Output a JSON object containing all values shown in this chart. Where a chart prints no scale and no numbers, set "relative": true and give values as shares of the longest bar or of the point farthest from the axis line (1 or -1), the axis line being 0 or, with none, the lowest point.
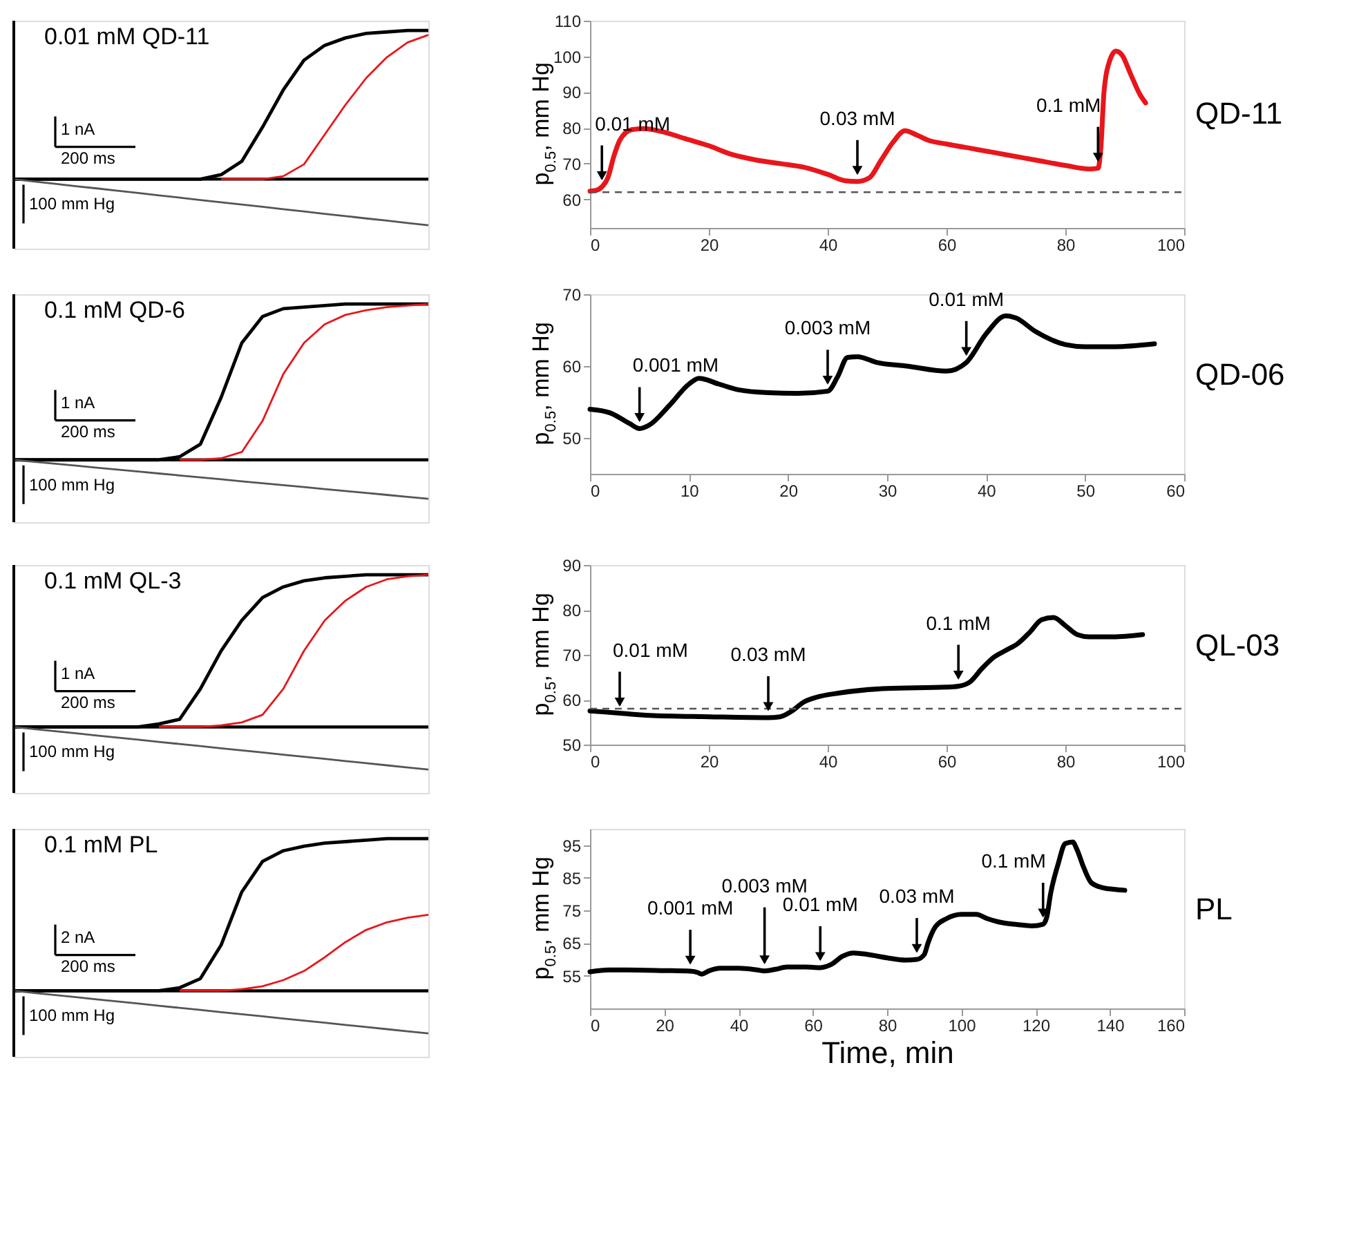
{
  "chart_data": [
    {
      "type": "line",
      "title": "0.01 mM  QD-11",
      "relative": true,
      "annotations": [
        "1 nA",
        "200 ms",
        "100 mm Hg"
      ],
      "categories": [
        null,
        null,
        null,
        null,
        null,
        null,
        null,
        null,
        null,
        null,
        null,
        null,
        null,
        null,
        null,
        null,
        null,
        null,
        null,
        null,
        null
      ],
      "series": [
        {
          "color": "#000000",
          "values": [
            0,
            0,
            0,
            0,
            0,
            0,
            0,
            0,
            0,
            0,
            0.03,
            0.12,
            0.35,
            0.6,
            0.8,
            0.9,
            0.95,
            0.98,
            0.99,
            1,
            1
          ]
        },
        {
          "color": "#e8161b",
          "values": [
            null,
            null,
            null,
            null,
            null,
            null,
            null,
            null,
            null,
            null,
            0,
            0,
            0,
            0.02,
            0.1,
            0.3,
            0.5,
            0.68,
            0.82,
            0.92,
            0.97
          ]
        },
        {
          "color": "#555555",
          "values": [
            0,
            -0.016,
            -0.031,
            -0.047,
            -0.062,
            -0.078,
            -0.093,
            -0.109,
            -0.124,
            -0.14,
            -0.155,
            -0.171,
            -0.186,
            -0.202,
            -0.217,
            -0.233,
            -0.248,
            -0.264,
            -0.279,
            -0.295,
            -0.31
          ]
        }
      ]
    },
    {
      "type": "line",
      "ylabel": "p$_{0.5}$, mm Hg",
      "xlim": [
        0,
        100
      ],
      "xticks": [
        0,
        20,
        40,
        60,
        80,
        100
      ],
      "ylim": [
        52,
        110
      ],
      "yticks": [
        60,
        70,
        80,
        90,
        100,
        110
      ],
      "x": [
        0,
        1,
        2,
        3,
        4,
        5,
        7,
        9,
        12,
        16,
        20,
        24,
        28,
        32,
        36,
        40,
        43,
        45,
        47,
        49,
        51,
        53,
        55,
        57,
        60,
        65,
        70,
        75,
        80,
        84,
        85.5,
        86,
        86.5,
        87.5,
        88.5,
        89.5,
        91,
        92.5,
        93.5
      ],
      "series": [
        {
          "color": "#e8161b",
          "values": [
            62.3,
            62.5,
            63.5,
            66,
            72,
            76.5,
            79.5,
            79.8,
            79,
            77,
            75,
            72.5,
            71,
            70,
            69,
            67,
            65.2,
            65,
            66,
            71,
            76,
            79.2,
            78,
            76.5,
            75.5,
            74,
            72.5,
            71,
            69.5,
            68.5,
            68.7,
            75,
            90,
            99,
            101.5,
            100.5,
            95,
            89.5,
            87
          ]
        }
      ],
      "ref_lines": [
        {
          "axis": "y",
          "value": 62,
          "color": "#555555",
          "line_style": "dashed"
        }
      ],
      "annotations": [
        "QD-11",
        {
          "text": "0.01 mM",
          "x": 2,
          "y": 63.5
        },
        {
          "text": "0.03 mM",
          "x": 45,
          "y": 65
        },
        {
          "text": "0.1 mM",
          "x": 85.5,
          "y": 68.7
        }
      ]
    },
    {
      "type": "line",
      "title": "0.1 mM QD-6",
      "relative": true,
      "annotations": [
        "1 nA",
        "200 ms",
        "100 mm Hg"
      ],
      "categories": [
        null,
        null,
        null,
        null,
        null,
        null,
        null,
        null,
        null,
        null,
        null,
        null,
        null,
        null,
        null,
        null,
        null,
        null,
        null,
        null,
        null
      ],
      "series": [
        {
          "color": "#000000",
          "values": [
            0,
            0,
            0,
            0,
            0,
            0,
            0,
            0,
            0.02,
            0.1,
            0.4,
            0.75,
            0.92,
            0.97,
            0.98,
            0.99,
            1,
            1,
            1,
            1,
            1
          ]
        },
        {
          "color": "#e8161b",
          "values": [
            null,
            null,
            null,
            null,
            null,
            null,
            null,
            null,
            0,
            0,
            0.01,
            0.05,
            0.25,
            0.55,
            0.75,
            0.87,
            0.93,
            0.96,
            0.98,
            0.99,
            1
          ]
        },
        {
          "color": "#555555",
          "values": [
            0,
            -0.0125,
            -0.025,
            -0.0375,
            -0.05,
            -0.0625,
            -0.075,
            -0.0875,
            -0.1,
            -0.1125,
            -0.125,
            -0.1375,
            -0.15,
            -0.1625,
            -0.175,
            -0.1875,
            -0.2,
            -0.2125,
            -0.225,
            -0.2375,
            -0.25
          ]
        }
      ]
    },
    {
      "type": "line",
      "ylabel": "p$_{0.5}$, mm Hg",
      "xlim": [
        0,
        60
      ],
      "xticks": [
        0,
        10,
        20,
        30,
        40,
        50,
        60
      ],
      "ylim": [
        45,
        70
      ],
      "yticks": [
        50,
        60,
        70
      ],
      "x": [
        0,
        2,
        4,
        5,
        6,
        8,
        10,
        11,
        13,
        15,
        18,
        21,
        24,
        25,
        26,
        27,
        29,
        32,
        36,
        38,
        40,
        42,
        43,
        45,
        48,
        50,
        53,
        57
      ],
      "series": [
        {
          "color": "#000000",
          "values": [
            54,
            53.5,
            52,
            51.3,
            51.8,
            54.5,
            57.5,
            58.3,
            57.5,
            56.7,
            56.3,
            56.2,
            56.5,
            58.5,
            61.2,
            61.3,
            60.5,
            60,
            59.3,
            60.5,
            64.5,
            67,
            66.7,
            64.8,
            63,
            62.7,
            62.7,
            63.1
          ]
        }
      ],
      "annotations": [
        "QD-06",
        {
          "text": "0.001 mM",
          "x": 5,
          "y": 51.3
        },
        {
          "text": "0.003 mM",
          "x": 24,
          "y": 56.5
        },
        {
          "text": "0.01 mM",
          "x": 38,
          "y": 60.5
        }
      ]
    },
    {
      "type": "line",
      "title": "0.1 mM QL-3",
      "relative": true,
      "annotations": [
        "1 nA",
        "200 ms",
        "100 mm Hg"
      ],
      "categories": [
        null,
        null,
        null,
        null,
        null,
        null,
        null,
        null,
        null,
        null,
        null,
        null,
        null,
        null,
        null,
        null,
        null,
        null,
        null,
        null,
        null
      ],
      "series": [
        {
          "color": "#000000",
          "values": [
            0,
            0,
            0,
            0,
            0,
            0,
            0,
            0.02,
            0.05,
            0.25,
            0.5,
            0.7,
            0.85,
            0.92,
            0.96,
            0.98,
            0.99,
            1,
            1,
            1,
            1
          ]
        },
        {
          "color": "#e8161b",
          "values": [
            null,
            null,
            null,
            null,
            null,
            null,
            null,
            0,
            0,
            0,
            0.01,
            0.03,
            0.08,
            0.25,
            0.5,
            0.7,
            0.83,
            0.92,
            0.97,
            0.99,
            1
          ]
        },
        {
          "color": "#555555",
          "values": [
            0,
            -0.014,
            -0.028,
            -0.042,
            -0.056,
            -0.07,
            -0.084,
            -0.098,
            -0.112,
            -0.126,
            -0.14,
            -0.154,
            -0.168,
            -0.182,
            -0.196,
            -0.21,
            -0.224,
            -0.238,
            -0.252,
            -0.266,
            -0.28
          ]
        }
      ]
    },
    {
      "type": "line",
      "ylabel": "p$_{0.5}$, mm Hg",
      "xlim": [
        0,
        100
      ],
      "xticks": [
        0,
        20,
        40,
        60,
        80,
        100
      ],
      "ylim": [
        50,
        90
      ],
      "yticks": [
        50,
        60,
        70,
        80,
        90
      ],
      "x": [
        0,
        5,
        10,
        20,
        30,
        32,
        34,
        36,
        38,
        42,
        50,
        60,
        62,
        64,
        66,
        68,
        70,
        72,
        74,
        76,
        78,
        80,
        82,
        84,
        88,
        93
      ],
      "series": [
        {
          "color": "#000000",
          "values": [
            57.5,
            57,
            56.5,
            56.2,
            56,
            56.2,
            57.5,
            59.5,
            60.5,
            61.5,
            62.5,
            62.8,
            63,
            64,
            67,
            69.5,
            71,
            72.5,
            75,
            77.8,
            78.3,
            76.5,
            74.5,
            74,
            74,
            74.5
          ]
        }
      ],
      "ref_lines": [
        {
          "axis": "y",
          "value": 58,
          "color": "#555555",
          "line_style": "dashed"
        }
      ],
      "annotations": [
        "QL-03",
        {
          "text": "0.01 mM",
          "x": 5,
          "y": 57
        },
        {
          "text": "0.03 mM",
          "x": 30,
          "y": 56
        },
        {
          "text": "0.1 mM",
          "x": 62,
          "y": 63
        }
      ]
    },
    {
      "type": "line",
      "title": "0.1 mM PL",
      "relative": true,
      "annotations": [
        "2 nA",
        "200 ms",
        "100 mm Hg"
      ],
      "categories": [
        null,
        null,
        null,
        null,
        null,
        null,
        null,
        null,
        null,
        null,
        null,
        null,
        null,
        null,
        null,
        null,
        null,
        null,
        null,
        null,
        null
      ],
      "series": [
        {
          "color": "#000000",
          "values": [
            0,
            0,
            0,
            0,
            0,
            0,
            0,
            0,
            0.02,
            0.08,
            0.3,
            0.65,
            0.85,
            0.92,
            0.95,
            0.97,
            0.98,
            0.99,
            1,
            1,
            1
          ]
        },
        {
          "color": "#e8161b",
          "values": [
            null,
            null,
            null,
            null,
            null,
            null,
            null,
            null,
            0,
            0,
            0,
            0.01,
            0.03,
            0.07,
            0.13,
            0.22,
            0.32,
            0.4,
            0.45,
            0.48,
            0.5
          ]
        },
        {
          "color": "#555555",
          "values": [
            0,
            -0.014,
            -0.028,
            -0.042,
            -0.056,
            -0.07,
            -0.084,
            -0.098,
            -0.112,
            -0.126,
            -0.14,
            -0.154,
            -0.168,
            -0.182,
            -0.196,
            -0.21,
            -0.224,
            -0.238,
            -0.252,
            -0.266,
            -0.28
          ]
        }
      ]
    },
    {
      "type": "line",
      "ylabel": "p$_{0.5}$, mm Hg",
      "xlabel": "Time, min",
      "xlim": [
        0,
        160
      ],
      "xticks": [
        0,
        20,
        40,
        60,
        80,
        100,
        120,
        140,
        160
      ],
      "ylim": [
        45,
        100
      ],
      "yticks": [
        55,
        65,
        75,
        85,
        95
      ],
      "x": [
        0,
        5,
        10,
        20,
        27,
        29,
        30,
        32,
        35,
        40,
        45,
        47,
        50,
        53,
        58,
        62,
        65,
        68,
        71,
        75,
        80,
        85,
        88,
        90,
        91,
        93,
        96,
        100,
        104,
        107,
        110,
        115,
        119,
        122,
        123,
        124,
        126,
        128,
        130,
        131,
        133,
        135,
        138,
        141,
        144
      ],
      "series": [
        {
          "color": "#000000",
          "values": [
            56.2,
            56.8,
            56.8,
            56.6,
            56.4,
            56,
            55.5,
            56.5,
            57.3,
            57.3,
            56.8,
            56.5,
            57,
            57.7,
            57.7,
            57.5,
            58.5,
            61,
            62,
            61.5,
            60.5,
            59.8,
            60,
            61.5,
            65,
            70,
            72.5,
            73.8,
            73.8,
            72.5,
            71.5,
            70.7,
            70.3,
            70.8,
            73,
            80,
            89,
            95.5,
            96,
            94,
            88,
            83.5,
            82,
            81.5,
            81.2
          ]
        }
      ],
      "annotations": [
        "PL",
        {
          "text": "0.001 mM",
          "x": 27,
          "y": 56.4
        },
        {
          "text": "0.003 mM",
          "x": 47,
          "y": 56.5
        },
        {
          "text": "0.01 mM",
          "x": 62,
          "y": 57.5
        },
        {
          "text": "0.03 mM",
          "x": 88,
          "y": 60
        },
        {
          "text": "0.1 mM",
          "x": 122,
          "y": 70.8
        }
      ]
    }
  ]
}
